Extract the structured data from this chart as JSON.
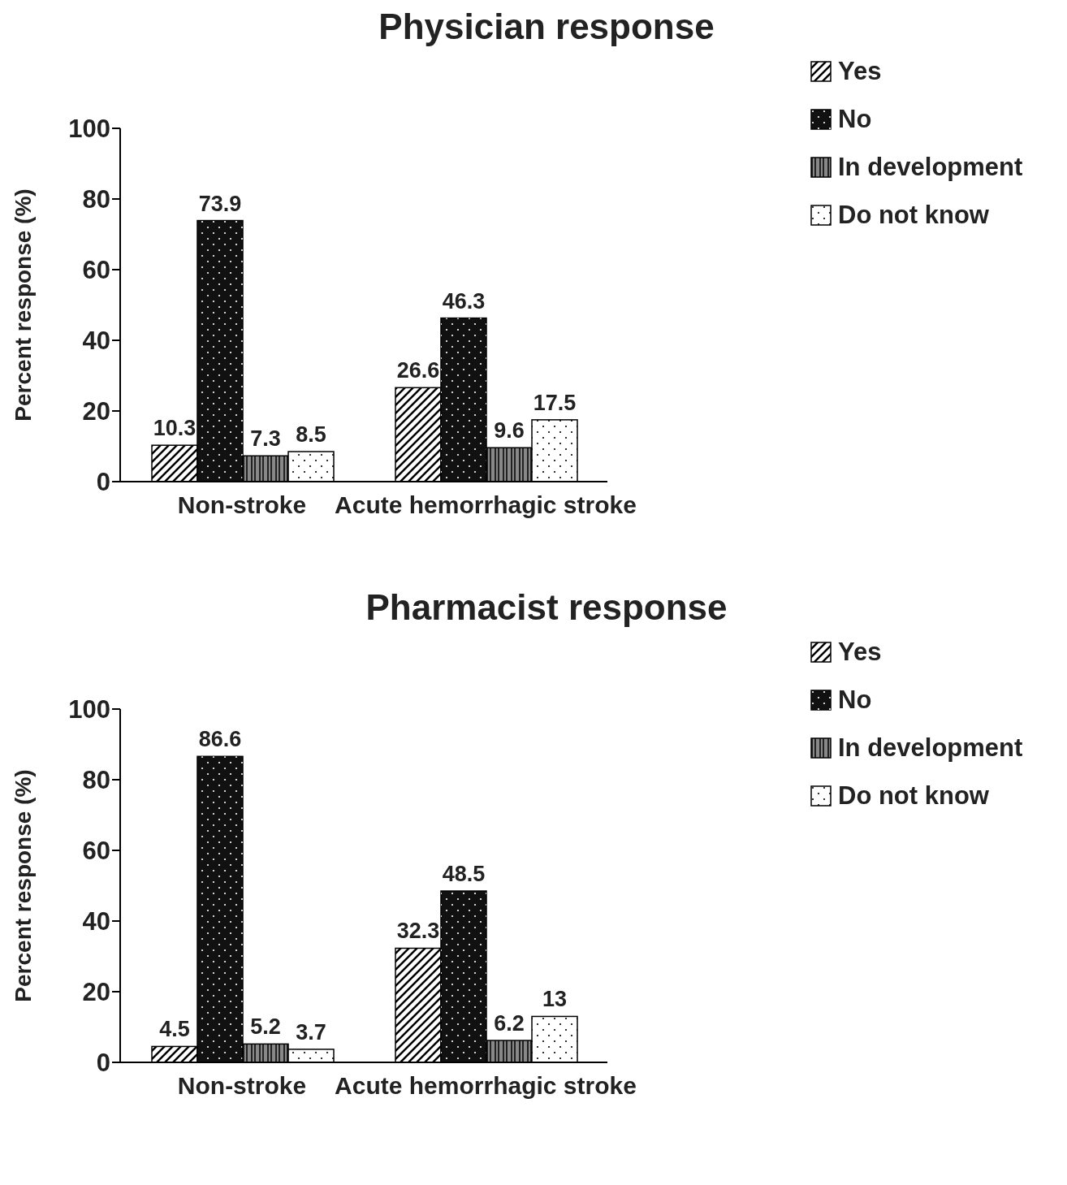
{
  "chart_data": [
    {
      "type": "bar",
      "title": "Physician response",
      "ylabel": "Percent response (%)",
      "categories": [
        "Non-stroke",
        "Acute hemorrhagic stroke"
      ],
      "series": [
        {
          "name": "Yes",
          "color": "#ffffff",
          "values": [
            10.3,
            26.6
          ]
        },
        {
          "name": "No",
          "color": "#111111",
          "values": [
            73.9,
            46.3
          ]
        },
        {
          "name": "In development",
          "color": "#888888",
          "values": [
            7.3,
            9.6
          ]
        },
        {
          "name": "Do not know",
          "color": "#ffffff",
          "values": [
            8.5,
            17.5
          ]
        }
      ],
      "ylim": [
        0,
        100
      ],
      "yticks": [
        0,
        20,
        40,
        60,
        80,
        100
      ],
      "data_labels": true,
      "legend": "top right",
      "grid": false
    },
    {
      "type": "bar",
      "title": "Pharmacist response",
      "ylabel": "Percent response (%)",
      "categories": [
        "Non-stroke",
        "Acute hemorrhagic stroke"
      ],
      "series": [
        {
          "name": "Yes",
          "color": "#ffffff",
          "values": [
            4.5,
            32.3
          ]
        },
        {
          "name": "No",
          "color": "#111111",
          "values": [
            86.6,
            48.5
          ]
        },
        {
          "name": "In development",
          "color": "#888888",
          "values": [
            5.2,
            6.2
          ]
        },
        {
          "name": "Do not know",
          "color": "#ffffff",
          "values": [
            3.7,
            13
          ]
        }
      ],
      "ylim": [
        0,
        100
      ],
      "yticks": [
        0,
        20,
        40,
        60,
        80,
        100
      ],
      "data_labels": true,
      "legend": "top right",
      "grid": false
    }
  ]
}
